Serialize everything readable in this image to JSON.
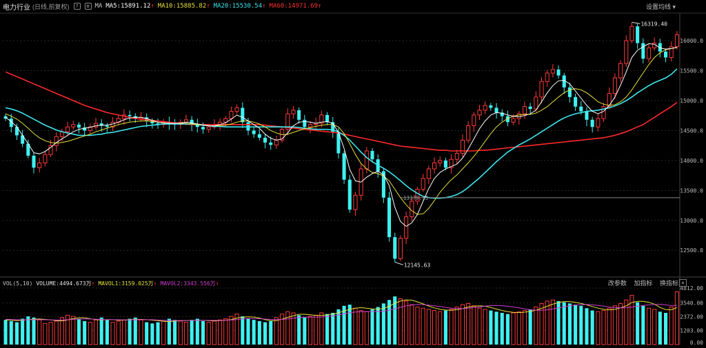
{
  "header": {
    "title": "电力行业",
    "subtitle": "(日线,前复权)",
    "ma_label": "MA",
    "ma5": "MA5:15891.12",
    "ma10": "MA10:15885.82",
    "ma20": "MA20:15530.54",
    "ma60": "MA60:14971.69",
    "settings_label": "设置均线",
    "colors": {
      "ma5": "#ffffff",
      "ma10": "#e8e23a",
      "ma20": "#3ee8f0",
      "ma60": "#ff2a2a"
    }
  },
  "volume_header": {
    "vol_label": "VOL(5,10)",
    "volume": "VOLUME:4494.673万",
    "mavol1": "MAVOL1:3159.025万",
    "mavol2": "MAVOL2:3343.556万",
    "tools": [
      "改参数",
      "加指标",
      "换指标"
    ],
    "colors": {
      "mavol1": "#e8e23a",
      "mavol2": "#d040d0"
    }
  },
  "chart_data": [
    {
      "type": "candlestick",
      "y_ticks": [
        "16000.0",
        "15500.0",
        "15000.0",
        "14500.0",
        "14000.0",
        "13500.0",
        "13000.0",
        "12500.0"
      ],
      "ylim": [
        12100,
        16450
      ],
      "annotations": {
        "high": "16319.40",
        "low": "12145.63",
        "level": "13379.13"
      },
      "closes": [
        14700,
        14560,
        14420,
        14280,
        14080,
        13880,
        13960,
        14100,
        14250,
        14400,
        14480,
        14560,
        14600,
        14550,
        14500,
        14560,
        14620,
        14580,
        14560,
        14640,
        14700,
        14760,
        14740,
        14700,
        14720,
        14660,
        14620,
        14600,
        14640,
        14620,
        14600,
        14640,
        14680,
        14600,
        14560,
        14520,
        14560,
        14600,
        14640,
        14700,
        14820,
        14880,
        14640,
        14500,
        14440,
        14380,
        14300,
        14260,
        14340,
        14520,
        14780,
        14840,
        14680,
        14560,
        14600,
        14620,
        14760,
        14640,
        14480,
        14120,
        13680,
        13180,
        13420,
        13860,
        14160,
        14020,
        13820,
        13380,
        12720,
        12360,
        12700,
        13060,
        13320,
        13520,
        13700,
        13860,
        13960,
        14000,
        13880,
        14020,
        14120,
        14340,
        14580,
        14760,
        14840,
        14920,
        14880,
        14800,
        14740,
        14640,
        14700,
        14780,
        14900,
        14860,
        15060,
        15320,
        15460,
        15520,
        15420,
        15220,
        15060,
        14900,
        14820,
        14680,
        14560,
        14700,
        14900,
        15120,
        15380,
        15620,
        16000,
        16240,
        15960,
        15700,
        15880,
        15960,
        15820,
        15720,
        15900,
        16100
      ],
      "ma5": [
        14720,
        14650,
        14560,
        14420,
        14280,
        14130,
        14110,
        14150,
        14220,
        14300,
        14360,
        14420,
        14480,
        14520,
        14540,
        14555,
        14580,
        14590,
        14590,
        14610,
        14640,
        14680,
        14710,
        14720,
        14720,
        14700,
        14670,
        14640,
        14630,
        14620,
        14620,
        14625,
        14640,
        14630,
        14610,
        14590,
        14580,
        14580,
        14600,
        14630,
        14690,
        14760,
        14720,
        14660,
        14600,
        14540,
        14440,
        14370,
        14340,
        14360,
        14460,
        14580,
        14640,
        14650,
        14640,
        14620,
        14640,
        14650,
        14620,
        14470,
        14200,
        13850,
        13660,
        13640,
        13720,
        13780,
        13820,
        13760,
        13580,
        13220,
        12980,
        12900,
        12960,
        13100,
        13320,
        13530,
        13700,
        13800,
        13860,
        13900,
        13940,
        14040,
        14190,
        14360,
        14530,
        14660,
        14760,
        14800,
        14790,
        14760,
        14740,
        14730,
        14750,
        14780,
        14840,
        14980,
        15130,
        15250,
        15330,
        15340,
        15280,
        15160,
        15040,
        14920,
        14820,
        14780,
        14820,
        14920,
        15060,
        15260,
        15480,
        15720,
        15840,
        15900,
        15950,
        15940,
        15880,
        15860,
        15870,
        15891
      ],
      "ma10": [
        14780,
        14740,
        14690,
        14620,
        14540,
        14450,
        14380,
        14330,
        14300,
        14290,
        14300,
        14320,
        14350,
        14380,
        14410,
        14440,
        14480,
        14510,
        14540,
        14570,
        14600,
        14620,
        14640,
        14650,
        14660,
        14660,
        14650,
        14640,
        14630,
        14620,
        14620,
        14620,
        14620,
        14610,
        14600,
        14590,
        14580,
        14580,
        14580,
        14590,
        14610,
        14640,
        14660,
        14660,
        14640,
        14610,
        14560,
        14500,
        14460,
        14430,
        14440,
        14470,
        14500,
        14530,
        14550,
        14570,
        14590,
        14600,
        14600,
        14560,
        14450,
        14280,
        14100,
        13950,
        13860,
        13800,
        13780,
        13740,
        13660,
        13520,
        13380,
        13260,
        13160,
        13100,
        13110,
        13200,
        13330,
        13470,
        13580,
        13680,
        13760,
        13860,
        13960,
        14070,
        14190,
        14320,
        14450,
        14560,
        14640,
        14700,
        14740,
        14760,
        14770,
        14770,
        14790,
        14840,
        14900,
        14980,
        15060,
        15130,
        15180,
        15200,
        15180,
        15130,
        15060,
        14980,
        14940,
        14920,
        14930,
        14980,
        15060,
        15180,
        15320,
        15460,
        15600,
        15720,
        15800,
        15850,
        15870,
        15886
      ],
      "ma20": [
        14880,
        14860,
        14830,
        14790,
        14740,
        14690,
        14640,
        14590,
        14550,
        14510,
        14480,
        14460,
        14440,
        14420,
        14420,
        14420,
        14430,
        14440,
        14460,
        14470,
        14490,
        14510,
        14530,
        14550,
        14570,
        14580,
        14590,
        14600,
        14610,
        14610,
        14610,
        14610,
        14610,
        14610,
        14600,
        14590,
        14580,
        14570,
        14570,
        14560,
        14560,
        14560,
        14560,
        14560,
        14560,
        14560,
        14560,
        14560,
        14560,
        14560,
        14560,
        14560,
        14550,
        14540,
        14530,
        14520,
        14520,
        14520,
        14510,
        14480,
        14420,
        14340,
        14240,
        14140,
        14050,
        13980,
        13920,
        13870,
        13810,
        13740,
        13660,
        13580,
        13510,
        13450,
        13400,
        13380,
        13370,
        13370,
        13380,
        13400,
        13430,
        13480,
        13550,
        13630,
        13710,
        13800,
        13890,
        13980,
        14060,
        14140,
        14200,
        14260,
        14310,
        14360,
        14420,
        14480,
        14540,
        14600,
        14660,
        14710,
        14750,
        14780,
        14800,
        14820,
        14830,
        14840,
        14860,
        14880,
        14910,
        14950,
        15000,
        15060,
        15130,
        15190,
        15250,
        15300,
        15340,
        15380,
        15440,
        15530
      ],
      "ma60": [
        15480,
        15440,
        15400,
        15360,
        15320,
        15280,
        15240,
        15200,
        15160,
        15120,
        15080,
        15040,
        15000,
        14960,
        14920,
        14890,
        14860,
        14830,
        14800,
        14780,
        14760,
        14740,
        14720,
        14700,
        14690,
        14680,
        14670,
        14660,
        14650,
        14640,
        14630,
        14620,
        14610,
        14600,
        14600,
        14600,
        14600,
        14600,
        14600,
        14600,
        14600,
        14600,
        14600,
        14600,
        14600,
        14600,
        14590,
        14580,
        14570,
        14560,
        14550,
        14540,
        14530,
        14520,
        14510,
        14500,
        14490,
        14480,
        14470,
        14460,
        14440,
        14420,
        14400,
        14380,
        14360,
        14340,
        14320,
        14300,
        14280,
        14260,
        14240,
        14230,
        14220,
        14210,
        14200,
        14190,
        14180,
        14170,
        14170,
        14160,
        14160,
        14160,
        14160,
        14160,
        14170,
        14170,
        14180,
        14190,
        14200,
        14210,
        14220,
        14230,
        14240,
        14250,
        14260,
        14270,
        14280,
        14290,
        14300,
        14310,
        14320,
        14330,
        14340,
        14350,
        14360,
        14370,
        14380,
        14400,
        14420,
        14450,
        14480,
        14520,
        14560,
        14600,
        14660,
        14720,
        14780,
        14840,
        14900,
        14971
      ]
    },
    {
      "type": "bar",
      "y_ticks": [
        "4812.00",
        "3540.00",
        "2372.00",
        "1203.00",
        "0.00"
      ],
      "ylim": [
        0,
        4812
      ],
      "values": [
        2100,
        2000,
        1900,
        2200,
        2400,
        2300,
        2100,
        1800,
        1900,
        2000,
        2300,
        2500,
        2400,
        2200,
        2000,
        1900,
        2100,
        2300,
        2100,
        1900,
        2000,
        2100,
        2200,
        2300,
        2100,
        1900,
        1800,
        1900,
        2000,
        2200,
        2100,
        2000,
        1900,
        2100,
        2200,
        2000,
        1900,
        2000,
        2100,
        2200,
        2400,
        2600,
        2400,
        2200,
        2100,
        2000,
        1900,
        2000,
        2300,
        2600,
        2800,
        2700,
        2500,
        2300,
        2400,
        2500,
        2700,
        2600,
        2700,
        3000,
        3300,
        3400,
        3100,
        2900,
        2800,
        3000,
        3200,
        3500,
        3800,
        4100,
        3900,
        3700,
        3400,
        3200,
        3100,
        3000,
        2900,
        2800,
        2900,
        3000,
        3200,
        3400,
        3500,
        3300,
        3100,
        3000,
        2900,
        2800,
        2700,
        2600,
        2700,
        2800,
        2900,
        3000,
        3200,
        3500,
        3700,
        3800,
        3700,
        3600,
        3500,
        3400,
        3300,
        3100,
        2900,
        2800,
        2900,
        3100,
        3300,
        3500,
        3800,
        4200,
        3600,
        3300,
        3100,
        3000,
        2800,
        2700,
        3200,
        4495
      ],
      "mavol1": [
        2100,
        2080,
        2040,
        2080,
        2120,
        2160,
        2180,
        2140,
        2100,
        2040,
        2020,
        2100,
        2220,
        2280,
        2280,
        2200,
        2120,
        2100,
        2120,
        2120,
        2080,
        2080,
        2120,
        2140,
        2140,
        2120,
        2080,
        2040,
        1980,
        1960,
        2000,
        2040,
        2040,
        2060,
        2060,
        2060,
        2040,
        2020,
        2040,
        2080,
        2120,
        2260,
        2340,
        2360,
        2340,
        2260,
        2120,
        2040,
        2040,
        2160,
        2320,
        2440,
        2580,
        2580,
        2540,
        2480,
        2480,
        2540,
        2600,
        2700,
        2860,
        3000,
        3100,
        3140,
        3100,
        3040,
        3000,
        3080,
        3260,
        3520,
        3700,
        3800,
        3780,
        3640,
        3460,
        3280,
        3120,
        3000,
        2940,
        2920,
        2980,
        3060,
        3200,
        3260,
        3300,
        3260,
        3160,
        3020,
        2900,
        2800,
        2740,
        2720,
        2760,
        2820,
        2920,
        3080,
        3260,
        3440,
        3580,
        3660,
        3660,
        3600,
        3500,
        3380,
        3240,
        3100,
        3000,
        2960,
        3000,
        3120,
        3300,
        3580,
        3680,
        3680,
        3600,
        3440,
        3160,
        2980,
        2960,
        3159
      ],
      "mavol2": [
        2150,
        2130,
        2110,
        2100,
        2110,
        2120,
        2120,
        2110,
        2100,
        2090,
        2090,
        2110,
        2140,
        2170,
        2180,
        2180,
        2160,
        2130,
        2120,
        2120,
        2110,
        2100,
        2100,
        2110,
        2120,
        2120,
        2110,
        2090,
        2070,
        2050,
        2050,
        2050,
        2050,
        2050,
        2060,
        2060,
        2060,
        2060,
        2060,
        2070,
        2090,
        2130,
        2180,
        2210,
        2220,
        2200,
        2170,
        2140,
        2130,
        2140,
        2180,
        2240,
        2300,
        2330,
        2340,
        2340,
        2350,
        2390,
        2440,
        2520,
        2620,
        2710,
        2770,
        2800,
        2810,
        2810,
        2810,
        2840,
        2920,
        3040,
        3170,
        3290,
        3370,
        3410,
        3400,
        3360,
        3300,
        3240,
        3170,
        3100,
        3070,
        3060,
        3090,
        3140,
        3200,
        3270,
        3320,
        3330,
        3310,
        3260,
        3200,
        3120,
        3040,
        2970,
        2920,
        2920,
        2960,
        3040,
        3130,
        3220,
        3300,
        3360,
        3400,
        3410,
        3390,
        3340,
        3270,
        3200,
        3150,
        3120,
        3140,
        3200,
        3260,
        3330,
        3380,
        3420,
        3420,
        3380,
        3320,
        3344
      ]
    }
  ]
}
